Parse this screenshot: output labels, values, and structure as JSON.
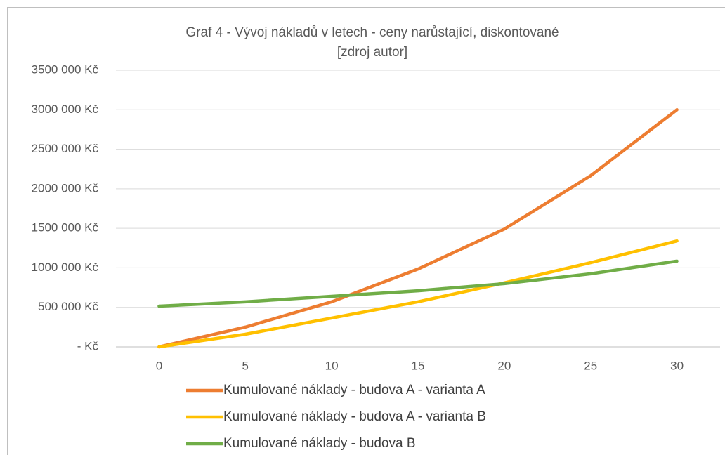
{
  "chart_data": {
    "type": "line",
    "title": "Graf 4 - Vývoj nákladů v letech - ceny narůstající, diskontované",
    "subtitle": "[zdroj autor]",
    "x": [
      0,
      5,
      10,
      15,
      20,
      25,
      30
    ],
    "xlim": [
      -2.5,
      32.5
    ],
    "xticks": [
      0,
      5,
      10,
      15,
      20,
      25,
      30
    ],
    "ylim": [
      0,
      3500000
    ],
    "yticks": [
      {
        "value": 0,
        "label": "-  Kč"
      },
      {
        "value": 500000,
        "label": "500 000 Kč"
      },
      {
        "value": 1000000,
        "label": "1000 000 Kč"
      },
      {
        "value": 1500000,
        "label": "1500 000 Kč"
      },
      {
        "value": 2000000,
        "label": "2000 000 Kč"
      },
      {
        "value": 2500000,
        "label": "2500 000 Kč"
      },
      {
        "value": 3000000,
        "label": "3000 000 Kč"
      },
      {
        "value": 3500000,
        "label": "3500 000 Kč"
      }
    ],
    "grid": true,
    "legend": "bottom",
    "series": [
      {
        "name": "Kumulované náklady - budova A - varianta A",
        "color": "#ed7d31",
        "values": [
          0,
          250000,
          570000,
          985000,
          1490000,
          2165000,
          3000000
        ]
      },
      {
        "name": "Kumulované náklady - budova A - varianta B",
        "color": "#ffc000",
        "values": [
          0,
          160000,
          365000,
          570000,
          810000,
          1065000,
          1340000
        ]
      },
      {
        "name": "Kumulované náklady - budova B",
        "color": "#70ad47",
        "values": [
          515000,
          570000,
          640000,
          710000,
          800000,
          925000,
          1085000
        ]
      }
    ]
  }
}
